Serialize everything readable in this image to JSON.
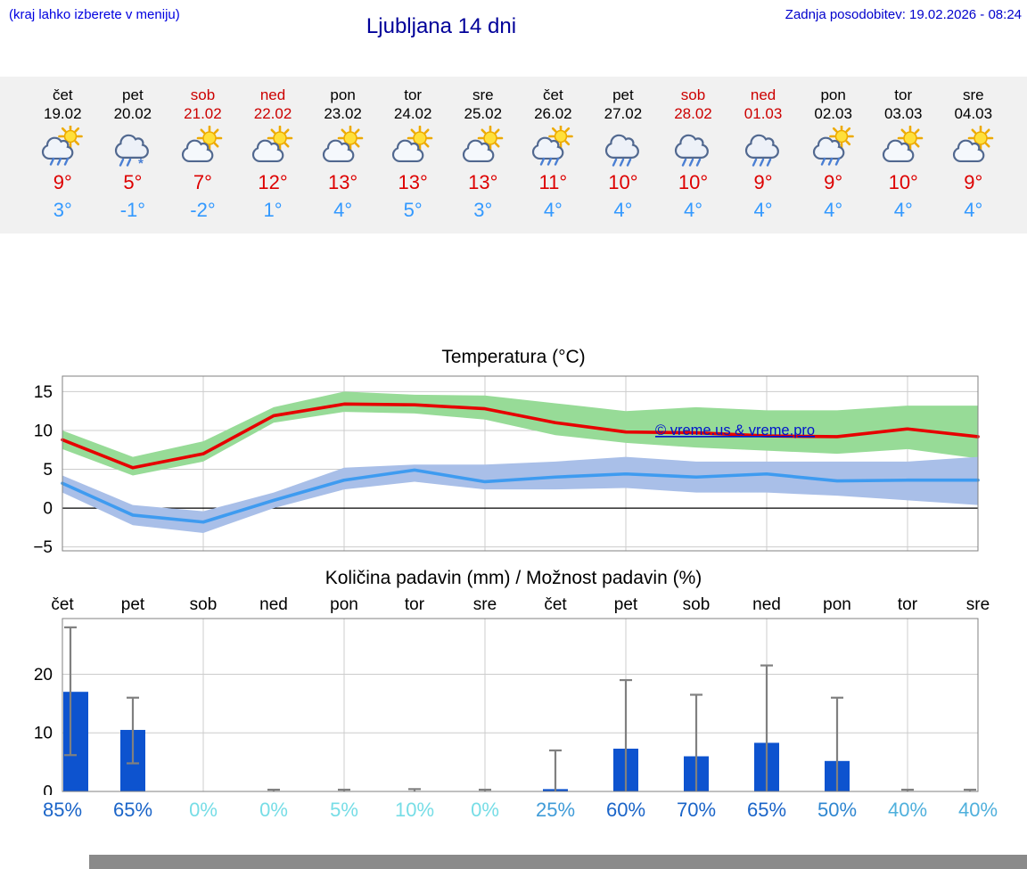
{
  "header": {
    "left_note": "(kraj lahko izberete v meniju)",
    "title": "Ljubljana 14 dni",
    "updated": "Zadnja posodobitev: 19.02.2026 - 08:24"
  },
  "colors": {
    "accent_blue": "#0000cc",
    "weekend_red": "#cc0000",
    "high_temp_red": "#dd0000",
    "low_temp_blue": "#3399ff"
  },
  "forecast": {
    "days": [
      {
        "day": "čet",
        "date": "19.02",
        "weekend": false,
        "icon": "sun-cloud-rain",
        "high": "9°",
        "low": "3°"
      },
      {
        "day": "pet",
        "date": "20.02",
        "weekend": false,
        "icon": "cloud-sleet",
        "high": "5°",
        "low": "-1°"
      },
      {
        "day": "sob",
        "date": "21.02",
        "weekend": true,
        "icon": "sun-cloud",
        "high": "7°",
        "low": "-2°"
      },
      {
        "day": "ned",
        "date": "22.02",
        "weekend": true,
        "icon": "sun-cloud",
        "high": "12°",
        "low": "1°"
      },
      {
        "day": "pon",
        "date": "23.02",
        "weekend": false,
        "icon": "sun-cloud",
        "high": "13°",
        "low": "4°"
      },
      {
        "day": "tor",
        "date": "24.02",
        "weekend": false,
        "icon": "sun-cloud",
        "high": "13°",
        "low": "5°"
      },
      {
        "day": "sre",
        "date": "25.02",
        "weekend": false,
        "icon": "sun-cloud",
        "high": "13°",
        "low": "3°"
      },
      {
        "day": "čet",
        "date": "26.02",
        "weekend": false,
        "icon": "sun-cloud-rain",
        "high": "11°",
        "low": "4°"
      },
      {
        "day": "pet",
        "date": "27.02",
        "weekend": false,
        "icon": "cloud-rain",
        "high": "10°",
        "low": "4°"
      },
      {
        "day": "sob",
        "date": "28.02",
        "weekend": true,
        "icon": "cloud-rain",
        "high": "10°",
        "low": "4°"
      },
      {
        "day": "ned",
        "date": "01.03",
        "weekend": true,
        "icon": "cloud-rain",
        "high": "9°",
        "low": "4°"
      },
      {
        "day": "pon",
        "date": "02.03",
        "weekend": false,
        "icon": "sun-cloud-rain",
        "high": "9°",
        "low": "4°"
      },
      {
        "day": "tor",
        "date": "03.03",
        "weekend": false,
        "icon": "sun-cloud",
        "high": "10°",
        "low": "4°"
      },
      {
        "day": "sre",
        "date": "04.03",
        "weekend": false,
        "icon": "sun-cloud",
        "high": "9°",
        "low": "4°"
      }
    ]
  },
  "chart_data": [
    {
      "type": "line",
      "title": "Temperatura (°C)",
      "x_labels": [
        "čet 19.02",
        "pet 20.02",
        "sob 21.02",
        "ned 22.02",
        "pon 23.02",
        "tor 24.02",
        "sre 25.02",
        "čet 26.02",
        "pet 27.02",
        "sob 28.02",
        "ned 01.03",
        "pon 02.03",
        "tor 03.03",
        "sre 04.03"
      ],
      "ylim": [
        -5.5,
        17
      ],
      "yticks": [
        -5,
        0,
        5,
        10,
        15
      ],
      "grid": true,
      "legend": "none",
      "watermark": "© vreme.us & vreme.pro",
      "series": [
        {
          "name": "max temperature",
          "color": "#e60000",
          "values": [
            8.8,
            5.2,
            7,
            11.9,
            13.4,
            13.3,
            12.8,
            11,
            9.8,
            9.7,
            9.3,
            9.2,
            10.2,
            9.2
          ]
        },
        {
          "name": "min temperature",
          "color": "#3e9bf0",
          "values": [
            3.2,
            -0.9,
            -1.8,
            1,
            3.6,
            4.9,
            3.4,
            4,
            4.4,
            4,
            4.4,
            3.5,
            3.6,
            3.6
          ]
        }
      ],
      "bands": [
        {
          "name": "max temperature range",
          "color": "#97db97",
          "upper": [
            10,
            6.6,
            8.6,
            13,
            15,
            14.6,
            14.5,
            13.5,
            12.5,
            13,
            12.6,
            12.6,
            13.2,
            13.2
          ],
          "lower": [
            7.6,
            4.2,
            6,
            11,
            12.4,
            12.2,
            11.4,
            9.4,
            8.4,
            7.8,
            7.4,
            7,
            7.6,
            6.4
          ]
        },
        {
          "name": "min temperature range",
          "color": "#a9bfe8",
          "upper": [
            4.2,
            0.4,
            -0.4,
            2,
            5.2,
            5.6,
            5.6,
            6,
            6.6,
            6,
            6,
            6,
            6,
            6.6
          ],
          "lower": [
            2,
            -2.2,
            -3.2,
            0,
            2.4,
            3.4,
            2.4,
            2.4,
            2.6,
            2,
            2,
            1.6,
            1,
            0.4
          ]
        }
      ]
    },
    {
      "type": "bar",
      "title": "Količina padavin (mm) / Možnost padavin (%)",
      "categories": [
        "čet",
        "pet",
        "sob",
        "ned",
        "pon",
        "tor",
        "sre",
        "čet",
        "pet",
        "sob",
        "ned",
        "pon",
        "tor",
        "sre"
      ],
      "values": [
        17,
        10.5,
        0,
        0,
        0,
        0,
        0,
        0.4,
        7.3,
        6,
        8.3,
        5.2,
        0,
        0
      ],
      "whisker_low": [
        6.2,
        4.8,
        0,
        0,
        0,
        0,
        0,
        0,
        0,
        0,
        0,
        0,
        0,
        0
      ],
      "whisker_high": [
        28,
        16,
        0,
        0.3,
        0.3,
        0.4,
        0.3,
        7,
        19,
        16.5,
        21.5,
        16,
        0.3,
        0.3
      ],
      "ylim": [
        0,
        29.5
      ],
      "yticks": [
        0,
        10,
        20
      ],
      "bar_color": "#0d53cf",
      "whisker_color": "#808080",
      "probabilities": [
        {
          "label": "85%",
          "color": "#1a64c8"
        },
        {
          "label": "65%",
          "color": "#1a64c8"
        },
        {
          "label": "0%",
          "color": "#76dde6"
        },
        {
          "label": "0%",
          "color": "#76dde6"
        },
        {
          "label": "5%",
          "color": "#76dde6"
        },
        {
          "label": "10%",
          "color": "#76dde6"
        },
        {
          "label": "0%",
          "color": "#76dde6"
        },
        {
          "label": "25%",
          "color": "#3f9bd8"
        },
        {
          "label": "60%",
          "color": "#1a64c8"
        },
        {
          "label": "70%",
          "color": "#1a64c8"
        },
        {
          "label": "65%",
          "color": "#1a64c8"
        },
        {
          "label": "50%",
          "color": "#2e86d0"
        },
        {
          "label": "40%",
          "color": "#4fb0dc"
        },
        {
          "label": "40%",
          "color": "#4fb0dc"
        }
      ]
    }
  ]
}
